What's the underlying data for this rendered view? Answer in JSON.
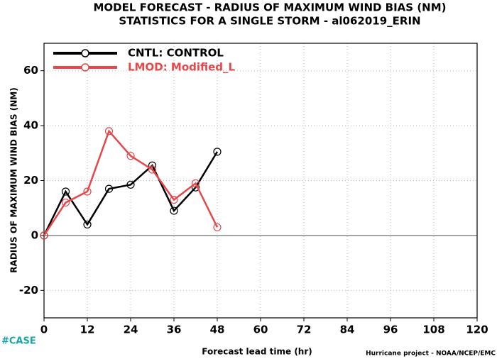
{
  "chart_data": {
    "type": "line",
    "title": "MODEL FORECAST - RADIUS OF MAXIMUM WIND BIAS (NM)",
    "subtitle": "STATISTICS FOR A SINGLE STORM - al062019_ERIN",
    "x_label": "Forecast lead time (hr)",
    "y_label": "RADIUS OF MAXIMUM WIND BIAS (NM)",
    "annotations": [
      "#CASE",
      "Hurricane project - NOAA/NCEP/EMC"
    ],
    "x": [
      0,
      6,
      12,
      18,
      24,
      30,
      36,
      42,
      48
    ],
    "series": [
      {
        "name": "CNTL: CONTROL",
        "color": "#000000",
        "values": [
          0,
          16,
          4,
          17,
          18.5,
          25.5,
          9,
          17.5,
          30.5
        ]
      },
      {
        "name": "LMOD: Modified_L",
        "color": "#e8474a",
        "values": [
          0,
          12,
          16,
          38,
          29,
          24,
          13,
          19,
          3
        ]
      }
    ],
    "xlim": [
      0,
      120
    ],
    "ylim": [
      -30,
      70
    ],
    "xticks": [
      0,
      12,
      24,
      36,
      48,
      60,
      72,
      84,
      96,
      108,
      120
    ],
    "yticks": [
      -20,
      0,
      20,
      40,
      60
    ],
    "grid": true
  }
}
